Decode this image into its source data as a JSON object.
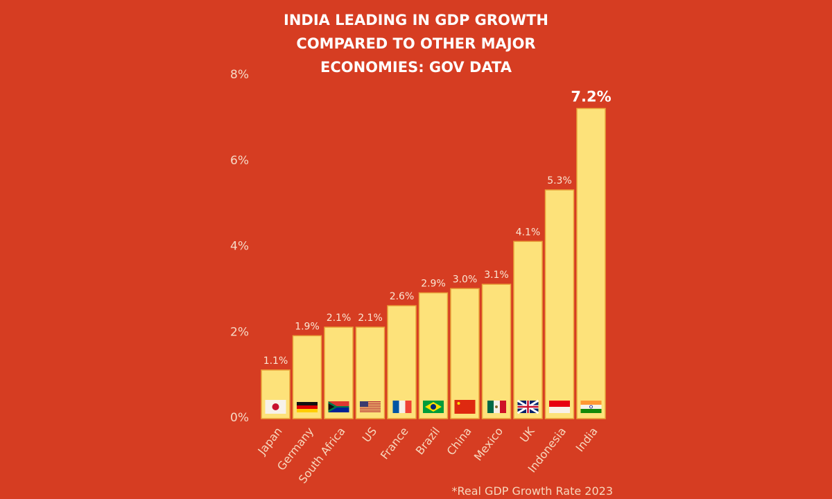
{
  "chart_data": {
    "type": "bar",
    "title_lines": [
      "INDIA LEADING IN GDP GROWTH",
      "COMPARED TO OTHER MAJOR",
      "ECONOMIES: GOV DATA"
    ],
    "categories": [
      "Japan",
      "Germany",
      "South Africa",
      "US",
      "France",
      "Brazil",
      "China",
      "Mexico",
      "UK",
      "Indonesia",
      "India"
    ],
    "values": [
      1.1,
      1.9,
      2.1,
      2.1,
      2.6,
      2.9,
      3.0,
      3.1,
      4.1,
      5.3,
      7.2
    ],
    "value_labels": [
      "1.1%",
      "1.9%",
      "2.1%",
      "2.1%",
      "2.6%",
      "2.9%",
      "3.0%",
      "3.1%",
      "4.1%",
      "5.3%",
      "7.2%"
    ],
    "highlight": "India",
    "flags": [
      "japan-flag",
      "germany-flag",
      "south-africa-flag",
      "us-flag",
      "france-flag",
      "brazil-flag",
      "china-flag",
      "mexico-flag",
      "uk-flag",
      "indonesia-flag",
      "india-flag"
    ],
    "yticks": [
      0,
      2,
      4,
      6,
      8
    ],
    "ytick_labels": [
      "0%",
      "2%",
      "4%",
      "6%",
      "8%"
    ],
    "ylim": [
      0,
      8
    ],
    "grid": false,
    "footnote": "*Real GDP Growth Rate 2023",
    "colors": {
      "background": "#d63d22",
      "bar": "#fde27a",
      "bar_border": "#e9a33a",
      "text": "#ffffff"
    }
  }
}
